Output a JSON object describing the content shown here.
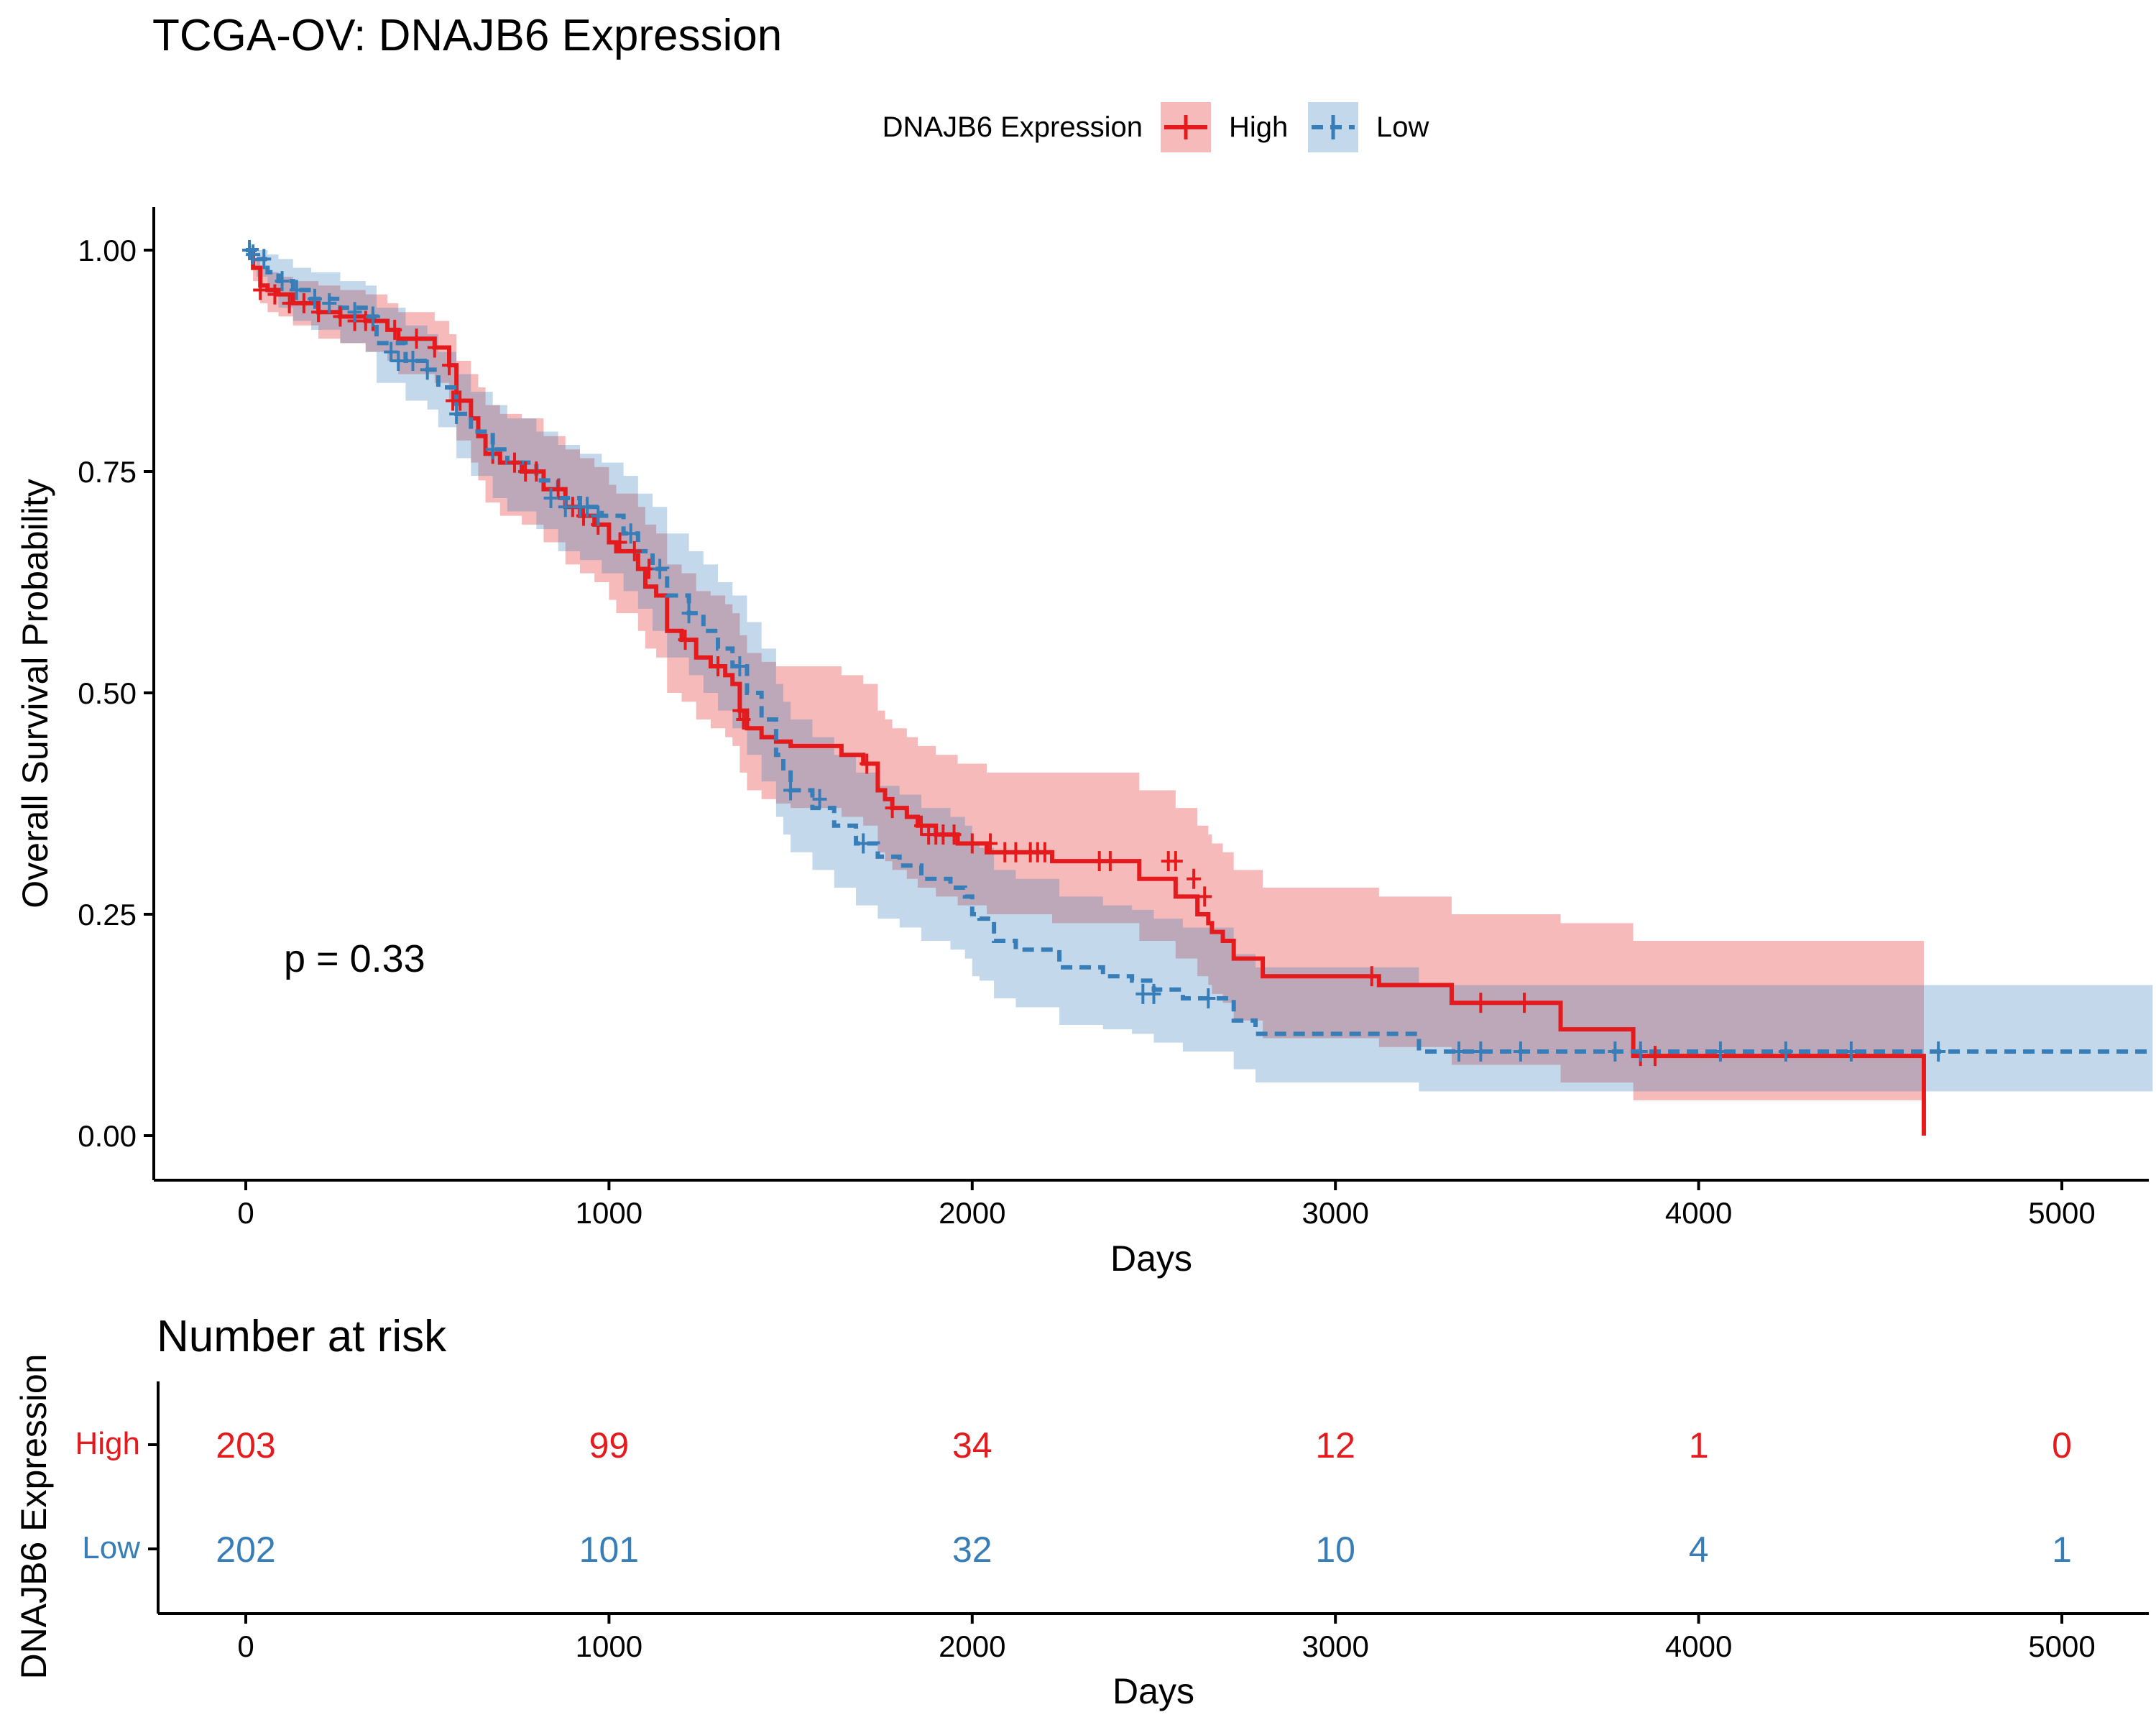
{
  "title": "TCGA-OV: DNAJB6 Expression",
  "colors": {
    "high": "#e41a1c",
    "low": "#377eb8",
    "axis": "#000000",
    "text": "#000000"
  },
  "legend": {
    "title": "DNAJB6 Expression",
    "items": [
      {
        "key": "high",
        "label": "High"
      },
      {
        "key": "low",
        "label": "Low"
      }
    ]
  },
  "pvalue_label": "p = 0.33",
  "chart_data": [
    {
      "type": "line",
      "subtype": "kaplan-meier",
      "title": "TCGA-OV: DNAJB6 Expression",
      "xlabel": "Days",
      "ylabel": "Overall Survival Probability",
      "xlim": [
        -250,
        5250
      ],
      "ylim": [
        -0.05,
        1.05
      ],
      "xticks": [
        0,
        1000,
        2000,
        3000,
        4000,
        5000
      ],
      "yticks": [
        0,
        0.25,
        0.5,
        0.75,
        1.0
      ],
      "ytick_labels": [
        "0.00",
        "0.25",
        "0.50",
        "0.75",
        "1.00"
      ],
      "grid": false,
      "legend_position": "top",
      "annotation": "p = 0.33",
      "series": [
        {
          "name": "High",
          "color": "#e41a1c",
          "linestyle": "solid",
          "x": [
            0,
            20,
            40,
            60,
            90,
            130,
            200,
            260,
            330,
            390,
            420,
            520,
            560,
            580,
            620,
            640,
            660,
            700,
            760,
            820,
            880,
            920,
            960,
            1000,
            1020,
            1080,
            1100,
            1130,
            1160,
            1200,
            1240,
            1280,
            1320,
            1340,
            1360,
            1380,
            1420,
            1460,
            1500,
            1560,
            1640,
            1700,
            1740,
            1760,
            1780,
            1820,
            1850,
            1900,
            1960,
            2040,
            2220,
            2260,
            2440,
            2460,
            2560,
            2620,
            2650,
            2660,
            2690,
            2720,
            2800,
            3120,
            3320,
            3620,
            3820,
            4620,
            4620
          ],
          "y": [
            1.0,
            0.98,
            0.96,
            0.955,
            0.95,
            0.94,
            0.93,
            0.925,
            0.92,
            0.91,
            0.9,
            0.89,
            0.87,
            0.83,
            0.81,
            0.79,
            0.77,
            0.76,
            0.75,
            0.73,
            0.71,
            0.7,
            0.69,
            0.67,
            0.66,
            0.64,
            0.62,
            0.61,
            0.57,
            0.56,
            0.54,
            0.53,
            0.52,
            0.51,
            0.48,
            0.46,
            0.45,
            0.445,
            0.44,
            0.44,
            0.43,
            0.42,
            0.39,
            0.38,
            0.37,
            0.36,
            0.35,
            0.34,
            0.33,
            0.32,
            0.31,
            0.31,
            0.31,
            0.29,
            0.27,
            0.25,
            0.24,
            0.23,
            0.22,
            0.2,
            0.18,
            0.17,
            0.15,
            0.12,
            0.09,
            0.09,
            0.0
          ],
          "ci_upper": [
            1.0,
            0.99,
            0.98,
            0.975,
            0.97,
            0.965,
            0.96,
            0.955,
            0.95,
            0.94,
            0.93,
            0.92,
            0.905,
            0.875,
            0.86,
            0.845,
            0.825,
            0.815,
            0.81,
            0.79,
            0.775,
            0.765,
            0.755,
            0.735,
            0.725,
            0.71,
            0.69,
            0.68,
            0.645,
            0.635,
            0.615,
            0.61,
            0.6,
            0.59,
            0.565,
            0.545,
            0.535,
            0.53,
            0.53,
            0.53,
            0.52,
            0.51,
            0.48,
            0.47,
            0.46,
            0.45,
            0.44,
            0.43,
            0.42,
            0.41,
            0.41,
            0.41,
            0.41,
            0.39,
            0.37,
            0.35,
            0.34,
            0.33,
            0.32,
            0.3,
            0.28,
            0.27,
            0.25,
            0.24,
            0.22,
            0.22,
            0.22
          ],
          "ci_lower": [
            1.0,
            0.965,
            0.94,
            0.93,
            0.925,
            0.915,
            0.9,
            0.895,
            0.885,
            0.875,
            0.86,
            0.85,
            0.83,
            0.785,
            0.76,
            0.74,
            0.715,
            0.7,
            0.69,
            0.67,
            0.645,
            0.635,
            0.625,
            0.605,
            0.59,
            0.57,
            0.55,
            0.54,
            0.5,
            0.49,
            0.47,
            0.46,
            0.45,
            0.44,
            0.41,
            0.39,
            0.38,
            0.375,
            0.37,
            0.37,
            0.36,
            0.35,
            0.32,
            0.31,
            0.3,
            0.29,
            0.28,
            0.27,
            0.26,
            0.25,
            0.24,
            0.24,
            0.24,
            0.22,
            0.2,
            0.18,
            0.17,
            0.16,
            0.15,
            0.13,
            0.11,
            0.1,
            0.08,
            0.06,
            0.04,
            0.04,
            0.04
          ],
          "censor_x": [
            40,
            80,
            120,
            160,
            200,
            260,
            300,
            330,
            350,
            410,
            470,
            520,
            560,
            570,
            590,
            680,
            740,
            770,
            800,
            860,
            900,
            930,
            970,
            1030,
            1070,
            1110,
            1210,
            1300,
            1360,
            1370,
            1710,
            1780,
            1860,
            1880,
            1900,
            1920,
            1950,
            2000,
            2050,
            2090,
            2120,
            2160,
            2180,
            2200,
            2350,
            2380,
            2540,
            2560,
            2610,
            2640,
            3100,
            3400,
            3520,
            3840,
            3880
          ],
          "censor_y": [
            0.955,
            0.95,
            0.94,
            0.94,
            0.93,
            0.925,
            0.92,
            0.92,
            0.92,
            0.91,
            0.9,
            0.89,
            0.87,
            0.83,
            0.83,
            0.77,
            0.76,
            0.75,
            0.75,
            0.73,
            0.71,
            0.7,
            0.69,
            0.67,
            0.66,
            0.64,
            0.56,
            0.53,
            0.48,
            0.47,
            0.42,
            0.37,
            0.35,
            0.34,
            0.34,
            0.34,
            0.34,
            0.33,
            0.33,
            0.32,
            0.32,
            0.32,
            0.32,
            0.32,
            0.31,
            0.31,
            0.31,
            0.31,
            0.29,
            0.27,
            0.18,
            0.15,
            0.15,
            0.09,
            0.09
          ]
        },
        {
          "name": "Low",
          "color": "#377eb8",
          "linestyle": "dashed",
          "x": [
            0,
            30,
            60,
            90,
            130,
            180,
            260,
            330,
            360,
            440,
            500,
            530,
            580,
            620,
            680,
            720,
            800,
            860,
            920,
            980,
            1040,
            1080,
            1120,
            1160,
            1220,
            1260,
            1300,
            1340,
            1380,
            1420,
            1460,
            1480,
            1500,
            1560,
            1620,
            1680,
            1740,
            1800,
            1860,
            1940,
            1980,
            2000,
            2020,
            2060,
            2120,
            2240,
            2360,
            2440,
            2500,
            2580,
            2720,
            2780,
            3000,
            3230,
            3260,
            3340,
            4000,
            4660,
            5250
          ],
          "y": [
            1.0,
            0.99,
            0.975,
            0.965,
            0.955,
            0.945,
            0.935,
            0.925,
            0.895,
            0.875,
            0.865,
            0.845,
            0.815,
            0.795,
            0.775,
            0.76,
            0.74,
            0.72,
            0.71,
            0.7,
            0.68,
            0.66,
            0.64,
            0.61,
            0.59,
            0.57,
            0.55,
            0.53,
            0.5,
            0.47,
            0.43,
            0.41,
            0.39,
            0.37,
            0.35,
            0.33,
            0.315,
            0.305,
            0.29,
            0.28,
            0.27,
            0.25,
            0.245,
            0.22,
            0.21,
            0.19,
            0.18,
            0.175,
            0.165,
            0.155,
            0.13,
            0.115,
            0.115,
            0.095,
            0.095,
            0.095,
            0.095,
            0.095,
            0.095
          ],
          "ci_upper": [
            1.0,
            1.0,
            0.995,
            0.99,
            0.98,
            0.975,
            0.965,
            0.96,
            0.935,
            0.915,
            0.905,
            0.885,
            0.86,
            0.84,
            0.825,
            0.81,
            0.795,
            0.78,
            0.77,
            0.76,
            0.745,
            0.725,
            0.71,
            0.68,
            0.66,
            0.645,
            0.625,
            0.61,
            0.58,
            0.55,
            0.51,
            0.49,
            0.47,
            0.45,
            0.43,
            0.41,
            0.395,
            0.385,
            0.37,
            0.36,
            0.35,
            0.33,
            0.325,
            0.3,
            0.29,
            0.27,
            0.26,
            0.255,
            0.245,
            0.235,
            0.205,
            0.19,
            0.19,
            0.17,
            0.17,
            0.17,
            0.17,
            0.17,
            0.17
          ],
          "ci_lower": [
            1.0,
            0.97,
            0.95,
            0.935,
            0.92,
            0.91,
            0.895,
            0.885,
            0.85,
            0.83,
            0.82,
            0.8,
            0.765,
            0.745,
            0.72,
            0.705,
            0.685,
            0.66,
            0.65,
            0.635,
            0.615,
            0.595,
            0.57,
            0.54,
            0.52,
            0.5,
            0.48,
            0.46,
            0.43,
            0.4,
            0.36,
            0.34,
            0.32,
            0.3,
            0.28,
            0.26,
            0.245,
            0.235,
            0.22,
            0.21,
            0.2,
            0.18,
            0.175,
            0.155,
            0.145,
            0.125,
            0.12,
            0.115,
            0.105,
            0.095,
            0.075,
            0.06,
            0.06,
            0.05,
            0.05,
            0.05,
            0.05,
            0.05,
            0.05
          ],
          "censor_x": [
            10,
            20,
            50,
            100,
            140,
            190,
            230,
            300,
            350,
            400,
            420,
            460,
            500,
            580,
            680,
            840,
            880,
            920,
            940,
            970,
            1060,
            1140,
            1220,
            1360,
            1500,
            1580,
            1700,
            2470,
            2500,
            2650,
            3340,
            3400,
            3510,
            3770,
            3840,
            4060,
            4240,
            4420,
            4660
          ],
          "censor_y": [
            1.0,
            0.995,
            0.99,
            0.965,
            0.955,
            0.945,
            0.94,
            0.93,
            0.925,
            0.885,
            0.875,
            0.875,
            0.865,
            0.815,
            0.775,
            0.72,
            0.71,
            0.71,
            0.71,
            0.7,
            0.68,
            0.64,
            0.59,
            0.53,
            0.39,
            0.38,
            0.33,
            0.16,
            0.16,
            0.155,
            0.095,
            0.095,
            0.095,
            0.095,
            0.095,
            0.095,
            0.095,
            0.095,
            0.095
          ]
        }
      ]
    },
    {
      "type": "table",
      "title": "Number at risk",
      "xlabel": "Days",
      "ylabel": "DNAJB6 Expression",
      "xlim": [
        -250,
        5250
      ],
      "xticks": [
        0,
        1000,
        2000,
        3000,
        4000,
        5000
      ],
      "rows": [
        {
          "name": "High",
          "color": "#e41a1c",
          "x": [
            0,
            1000,
            2000,
            3000,
            4000,
            5000
          ],
          "values": [
            203,
            99,
            34,
            12,
            1,
            0
          ]
        },
        {
          "name": "Low",
          "color": "#377eb8",
          "x": [
            0,
            1000,
            2000,
            3000,
            4000,
            5000
          ],
          "values": [
            202,
            101,
            32,
            10,
            4,
            1
          ]
        }
      ]
    }
  ]
}
